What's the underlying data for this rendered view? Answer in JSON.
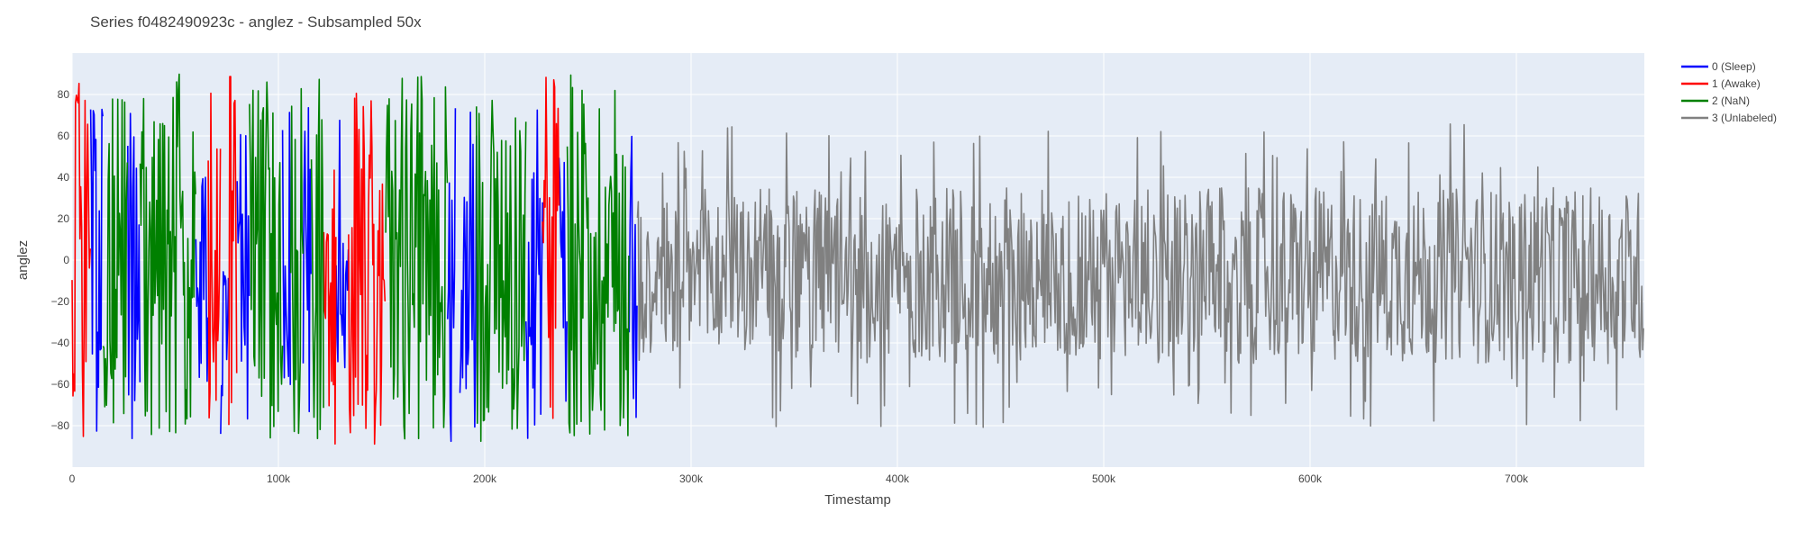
{
  "chart_data": {
    "type": "line",
    "title": "Series f0482490923c - anglez - Subsampled 50x",
    "xlabel": "Timestamp",
    "ylabel": "anglez",
    "xlim": [
      0,
      762000
    ],
    "ylim": [
      -100,
      100
    ],
    "x_ticks": [
      {
        "value": 0,
        "label": "0"
      },
      {
        "value": 100000,
        "label": "100k"
      },
      {
        "value": 200000,
        "label": "200k"
      },
      {
        "value": 300000,
        "label": "300k"
      },
      {
        "value": 400000,
        "label": "400k"
      },
      {
        "value": 500000,
        "label": "500k"
      },
      {
        "value": 600000,
        "label": "600k"
      },
      {
        "value": 700000,
        "label": "700k"
      }
    ],
    "y_ticks": [
      {
        "value": 80,
        "label": "80"
      },
      {
        "value": 60,
        "label": "60"
      },
      {
        "value": 40,
        "label": "40"
      },
      {
        "value": 20,
        "label": "20"
      },
      {
        "value": 0,
        "label": "0"
      },
      {
        "value": -20,
        "label": "−20"
      },
      {
        "value": -40,
        "label": "−40"
      },
      {
        "value": -60,
        "label": "−60"
      },
      {
        "value": -80,
        "label": "−80"
      }
    ],
    "grid": true,
    "legend_position": "top-right",
    "series": [
      {
        "name": "0 (Sleep)",
        "color": "#0000ff",
        "segments": [
          [
            9000,
            15000
          ],
          [
            27000,
            33000
          ],
          [
            60000,
            66000
          ],
          [
            72000,
            76000
          ],
          [
            80000,
            86000
          ],
          [
            102000,
            106000
          ],
          [
            112000,
            116000
          ],
          [
            128000,
            134000
          ],
          [
            182000,
            186000
          ],
          [
            188000,
            196000
          ],
          [
            220000,
            228000
          ],
          [
            236000,
            240000
          ],
          [
            270000,
            274000
          ]
        ],
        "approx_range": [
          -88,
          74
        ]
      },
      {
        "name": "1 (Awake)",
        "color": "#ff0000",
        "segments": [
          [
            0,
            9000
          ],
          [
            66000,
            72000
          ],
          [
            76000,
            80000
          ],
          [
            122000,
            128000
          ],
          [
            134000,
            152000
          ],
          [
            228000,
            236000
          ]
        ],
        "approx_range": [
          -90,
          89
        ]
      },
      {
        "name": "2 (NaN)",
        "color": "#008000",
        "segments": [
          [
            15000,
            27000
          ],
          [
            33000,
            60000
          ],
          [
            86000,
            102000
          ],
          [
            106000,
            112000
          ],
          [
            116000,
            122000
          ],
          [
            152000,
            182000
          ],
          [
            196000,
            220000
          ],
          [
            240000,
            270000
          ]
        ],
        "approx_range": [
          -88,
          90
        ]
      },
      {
        "name": "3 (Unlabeled)",
        "color": "#808080",
        "segments": [
          [
            274000,
            762000
          ]
        ],
        "approx_range": [
          -82,
          66
        ],
        "typical_range": [
          -50,
          35
        ]
      }
    ]
  }
}
